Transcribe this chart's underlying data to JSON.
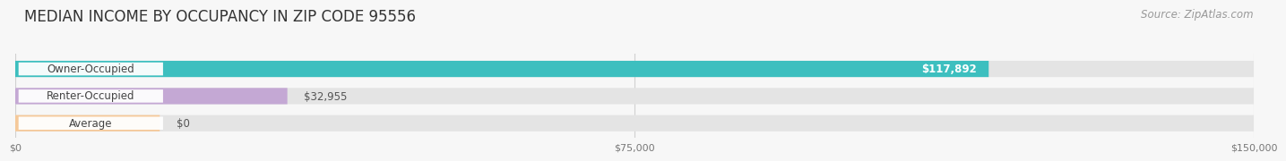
{
  "title": "MEDIAN INCOME BY OCCUPANCY IN ZIP CODE 95556",
  "source": "Source: ZipAtlas.com",
  "categories": [
    "Owner-Occupied",
    "Renter-Occupied",
    "Average"
  ],
  "values": [
    117892,
    32955,
    0
  ],
  "bar_colors": [
    "#3dbfbf",
    "#c4a8d4",
    "#f5c99a"
  ],
  "bar_bg_color": "#e2e2e2",
  "label_texts": [
    "$117,892",
    "$32,955",
    "$0"
  ],
  "value_inside": [
    true,
    false,
    false
  ],
  "xlim": [
    0,
    150000
  ],
  "xtick_values": [
    0,
    75000,
    150000
  ],
  "xtick_labels": [
    "$0",
    "$75,000",
    "$150,000"
  ],
  "title_fontsize": 12,
  "source_fontsize": 8.5,
  "bar_label_fontsize": 8.5,
  "category_fontsize": 8.5,
  "background_color": "#f7f7f7",
  "pill_bg_color": "#e4e4e4",
  "pill_white": "#ffffff",
  "grid_color": "#d0d0d0",
  "text_dark": "#444444",
  "text_light": "#ffffff",
  "text_value": "#555555"
}
